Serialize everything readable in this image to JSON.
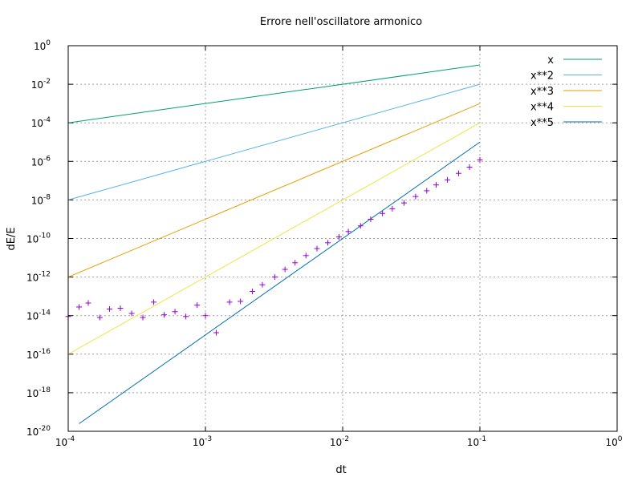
{
  "chart_data": {
    "type": "line",
    "title": "Errore nell'oscillatore armonico",
    "xlabel": "dt",
    "ylabel": "dE/E",
    "x_scale": "log",
    "y_scale": "log",
    "xlim": [
      0.0001,
      1
    ],
    "ylim": [
      1e-20,
      1
    ],
    "grid": true,
    "legend_position": "top-right",
    "x_ticks": [
      {
        "mantissa": "10",
        "exp": "-4"
      },
      {
        "mantissa": "10",
        "exp": "-3"
      },
      {
        "mantissa": "10",
        "exp": "-2"
      },
      {
        "mantissa": "10",
        "exp": "-1"
      },
      {
        "mantissa": "10",
        "exp": "0"
      }
    ],
    "y_ticks": [
      {
        "mantissa": "10",
        "exp": "-20"
      },
      {
        "mantissa": "10",
        "exp": "-18"
      },
      {
        "mantissa": "10",
        "exp": "-16"
      },
      {
        "mantissa": "10",
        "exp": "-14"
      },
      {
        "mantissa": "10",
        "exp": "-12"
      },
      {
        "mantissa": "10",
        "exp": "-10"
      },
      {
        "mantissa": "10",
        "exp": "-8"
      },
      {
        "mantissa": "10",
        "exp": "-6"
      },
      {
        "mantissa": "10",
        "exp": "-4"
      },
      {
        "mantissa": "10",
        "exp": "-2"
      },
      {
        "mantissa": "10",
        "exp": "0"
      }
    ],
    "series": [
      {
        "name": "x",
        "power": 1,
        "color": "#009e73",
        "x_range": [
          0.0001,
          0.1
        ]
      },
      {
        "name": "x**2",
        "power": 2,
        "color": "#56b4e9",
        "x_range": [
          0.0001,
          0.1
        ]
      },
      {
        "name": "x**3",
        "power": 3,
        "color": "#e69f00",
        "x_range": [
          0.0001,
          0.1
        ]
      },
      {
        "name": "x**4",
        "power": 4,
        "color": "#f0e442",
        "x_range": [
          0.0001,
          0.1
        ]
      },
      {
        "name": "x**5",
        "power": 5,
        "color": "#0072b2",
        "x_range": [
          0.00012,
          0.1
        ]
      }
    ],
    "scatter": {
      "color": "#9400d3",
      "marker": "+",
      "x": [
        0.0001,
        0.00012,
        0.00014,
        0.00017,
        0.0002,
        0.00024,
        0.00029,
        0.00035,
        0.00042,
        0.0005,
        0.0006,
        0.00072,
        0.00087,
        0.001,
        0.0012,
        0.0015,
        0.0018,
        0.0022,
        0.0026,
        0.0032,
        0.0038,
        0.0045,
        0.0054,
        0.0065,
        0.0078,
        0.0094,
        0.011,
        0.0135,
        0.016,
        0.0195,
        0.023,
        0.028,
        0.034,
        0.041,
        0.048,
        0.058,
        0.07,
        0.084,
        0.1
      ],
      "y": [
        9e-15,
        2.8e-14,
        4.5e-14,
        8e-15,
        2.2e-14,
        2.4e-14,
        1.3e-14,
        8e-15,
        5e-14,
        1.1e-14,
        1.6e-14,
        9e-15,
        3.5e-14,
        1e-14,
        1.3e-15,
        5e-14,
        5.5e-14,
        1.8e-13,
        4e-13,
        1e-12,
        2.5e-12,
        5.5e-12,
        1.3e-11,
        3e-11,
        6e-11,
        1.2e-10,
        2.3e-10,
        4.5e-10,
        1e-09,
        2e-09,
        3.5e-09,
        7e-09,
        1.5e-08,
        3e-08,
        6e-08,
        1.1e-07,
        2.4e-07,
        5e-07,
        1.2e-06
      ]
    }
  }
}
